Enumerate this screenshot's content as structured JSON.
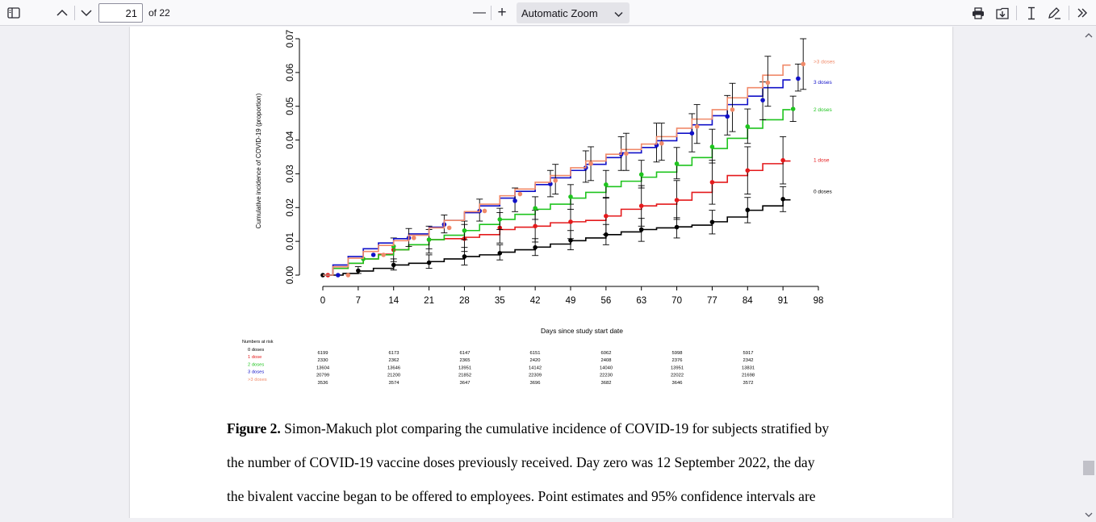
{
  "toolbar": {
    "page_number": "21",
    "page_total": "of 22",
    "zoom_minus": "—",
    "zoom_plus": "+",
    "zoom_label": "Automatic Zoom"
  },
  "colors": {
    "dose0": "#000000",
    "dose1": "#e41a1c",
    "dose2": "#1ec41e",
    "dose3": "#1010c8",
    "dose3plus": "#f08a6a"
  },
  "chart_data": {
    "type": "line",
    "step": true,
    "xlabel": "Days since study start date",
    "ylabel": "Cumulative incidence of COVID-19 (proportion)",
    "xlim": [
      0,
      98
    ],
    "ylim": [
      0,
      0.07
    ],
    "xticks": [
      0,
      7,
      14,
      21,
      28,
      35,
      42,
      49,
      56,
      63,
      70,
      77,
      84,
      91,
      98
    ],
    "yticks": [
      "0.00",
      "0.01",
      "0.02",
      "0.03",
      "0.04",
      "0.05",
      "0.06",
      "0.07"
    ],
    "series": [
      {
        "name": "0 doses",
        "color": "#000000",
        "x": [
          0,
          4,
          7,
          10,
          14,
          17,
          21,
          24,
          28,
          31,
          35,
          38,
          42,
          45,
          49,
          52,
          56,
          59,
          63,
          66,
          70,
          73,
          77,
          80,
          84,
          87,
          91
        ],
        "y": [
          0,
          0.0005,
          0.0012,
          0.002,
          0.003,
          0.0035,
          0.004,
          0.0048,
          0.0055,
          0.006,
          0.0068,
          0.0075,
          0.0083,
          0.0092,
          0.0102,
          0.011,
          0.012,
          0.0128,
          0.0135,
          0.014,
          0.0143,
          0.0148,
          0.0158,
          0.0172,
          0.0192,
          0.0205,
          0.0223
        ],
        "points": [
          [
            0,
            0
          ],
          [
            7,
            0.0013
          ],
          [
            14,
            0.003
          ],
          [
            21,
            0.0037
          ],
          [
            28,
            0.0055
          ],
          [
            35,
            0.0065
          ],
          [
            42,
            0.0082
          ],
          [
            49,
            0.0103
          ],
          [
            56,
            0.012
          ],
          [
            63,
            0.0135
          ],
          [
            70,
            0.0142
          ],
          [
            77,
            0.0157
          ],
          [
            84,
            0.0193
          ],
          [
            91,
            0.0225
          ]
        ],
        "ci": [
          [
            7,
            0.0005,
            0.0025
          ],
          [
            14,
            0.0015,
            0.0048
          ],
          [
            21,
            0.002,
            0.006
          ],
          [
            28,
            0.003,
            0.0082
          ],
          [
            35,
            0.0045,
            0.009
          ],
          [
            42,
            0.0058,
            0.0108
          ],
          [
            49,
            0.0075,
            0.0132
          ],
          [
            56,
            0.009,
            0.015
          ],
          [
            63,
            0.01,
            0.0168
          ],
          [
            70,
            0.011,
            0.017
          ],
          [
            77,
            0.0122,
            0.0192
          ],
          [
            84,
            0.0155,
            0.023
          ],
          [
            91,
            0.0188,
            0.0262
          ]
        ]
      },
      {
        "name": "1 dose",
        "color": "#e41a1c",
        "x": [
          0,
          2,
          5,
          8,
          11,
          14,
          17,
          21,
          24,
          28,
          31,
          35,
          38,
          42,
          45,
          49,
          52,
          56,
          59,
          63,
          66,
          70,
          73,
          77,
          80,
          84,
          87,
          91
        ],
        "y": [
          0,
          0.002,
          0.0035,
          0.0048,
          0.0062,
          0.0075,
          0.009,
          0.0105,
          0.0108,
          0.0112,
          0.012,
          0.0135,
          0.0142,
          0.0145,
          0.0155,
          0.0158,
          0.0162,
          0.0175,
          0.0195,
          0.0205,
          0.021,
          0.0222,
          0.0245,
          0.0275,
          0.0295,
          0.031,
          0.033,
          0.0338
        ],
        "points": [
          [
            1,
            0
          ],
          [
            14,
            0.0075
          ],
          [
            21,
            0.0105
          ],
          [
            28,
            0.0108
          ],
          [
            35,
            0.014
          ],
          [
            42,
            0.0145
          ],
          [
            49,
            0.0158
          ],
          [
            56,
            0.0175
          ],
          [
            63,
            0.0205
          ],
          [
            70,
            0.0222
          ],
          [
            77,
            0.0275
          ],
          [
            84,
            0.031
          ],
          [
            91,
            0.034
          ]
        ],
        "ci": [
          [
            14,
            0.004,
            0.011
          ],
          [
            21,
            0.0065,
            0.0145
          ],
          [
            28,
            0.007,
            0.015
          ],
          [
            35,
            0.0095,
            0.0185
          ],
          [
            42,
            0.0098,
            0.0192
          ],
          [
            49,
            0.0108,
            0.021
          ],
          [
            56,
            0.012,
            0.023
          ],
          [
            63,
            0.0145,
            0.0265
          ],
          [
            70,
            0.0165,
            0.028
          ],
          [
            77,
            0.021,
            0.034
          ],
          [
            84,
            0.024,
            0.038
          ],
          [
            91,
            0.027,
            0.041
          ]
        ]
      },
      {
        "name": "2 doses",
        "color": "#1ec41e",
        "x": [
          0,
          2,
          5,
          8,
          11,
          14,
          17,
          21,
          24,
          28,
          31,
          35,
          38,
          42,
          45,
          49,
          52,
          56,
          59,
          63,
          66,
          70,
          73,
          77,
          80,
          84,
          87,
          91
        ],
        "y": [
          0,
          0.002,
          0.0035,
          0.0048,
          0.006,
          0.0075,
          0.009,
          0.0105,
          0.0118,
          0.0132,
          0.015,
          0.0165,
          0.018,
          0.0195,
          0.021,
          0.0228,
          0.0245,
          0.0262,
          0.0278,
          0.029,
          0.0305,
          0.0325,
          0.0348,
          0.0375,
          0.0405,
          0.0435,
          0.046,
          0.049
        ],
        "points": [
          [
            8,
            0.0048
          ],
          [
            14,
            0.0085
          ],
          [
            21,
            0.0105
          ],
          [
            28,
            0.0132
          ],
          [
            35,
            0.0165
          ],
          [
            42,
            0.0198
          ],
          [
            49,
            0.0232
          ],
          [
            56,
            0.0268
          ],
          [
            63,
            0.0298
          ],
          [
            70,
            0.033
          ],
          [
            77,
            0.038
          ],
          [
            84,
            0.044
          ],
          [
            93,
            0.0492
          ]
        ],
        "ci": [
          [
            21,
            0.0078,
            0.0135
          ],
          [
            28,
            0.0105,
            0.016
          ],
          [
            35,
            0.0135,
            0.0198
          ],
          [
            42,
            0.0165,
            0.0232
          ],
          [
            49,
            0.0195,
            0.0268
          ],
          [
            56,
            0.0228,
            0.031
          ],
          [
            63,
            0.0258,
            0.034
          ],
          [
            70,
            0.0285,
            0.0378
          ],
          [
            77,
            0.0332,
            0.0432
          ],
          [
            84,
            0.039,
            0.0492
          ],
          [
            93,
            0.0455,
            0.053
          ]
        ]
      },
      {
        "name": "3 doses",
        "color": "#1010c8",
        "x": [
          0,
          2,
          5,
          8,
          11,
          14,
          17,
          21,
          24,
          28,
          31,
          35,
          38,
          42,
          45,
          49,
          52,
          56,
          59,
          63,
          66,
          70,
          73,
          77,
          80,
          84,
          87,
          91
        ],
        "y": [
          0,
          0.003,
          0.0055,
          0.0078,
          0.0095,
          0.0108,
          0.0122,
          0.0142,
          0.0162,
          0.0185,
          0.0205,
          0.0228,
          0.0248,
          0.0268,
          0.0288,
          0.031,
          0.0328,
          0.0348,
          0.0362,
          0.0378,
          0.0398,
          0.042,
          0.0445,
          0.0472,
          0.0505,
          0.053,
          0.0555,
          0.0578
        ],
        "points": [
          [
            3,
            0
          ],
          [
            10,
            0.006
          ],
          [
            17,
            0.011
          ],
          [
            24,
            0.015
          ],
          [
            31,
            0.019
          ],
          [
            38,
            0.022
          ],
          [
            45,
            0.027
          ],
          [
            52,
            0.0318
          ],
          [
            59,
            0.0358
          ],
          [
            66,
            0.0385
          ],
          [
            73,
            0.042
          ],
          [
            80,
            0.047
          ],
          [
            87,
            0.0518
          ],
          [
            94,
            0.0582
          ]
        ],
        "ci": [
          [
            17,
            0.0085,
            0.0138
          ],
          [
            24,
            0.0125,
            0.0178
          ],
          [
            31,
            0.016,
            0.0225
          ],
          [
            38,
            0.0188,
            0.0258
          ],
          [
            45,
            0.0232,
            0.031
          ],
          [
            52,
            0.0275,
            0.0368
          ],
          [
            59,
            0.031,
            0.041
          ],
          [
            66,
            0.0335,
            0.045
          ],
          [
            73,
            0.0365,
            0.0478
          ],
          [
            80,
            0.0415,
            0.0532
          ],
          [
            87,
            0.046,
            0.0572
          ],
          [
            94,
            0.0545,
            0.0625
          ]
        ]
      },
      {
        "name": ">3 doses",
        "color": "#f08a6a",
        "x": [
          0,
          2,
          5,
          8,
          11,
          14,
          17,
          21,
          24,
          28,
          31,
          35,
          38,
          42,
          45,
          49,
          52,
          56,
          59,
          63,
          66,
          70,
          73,
          77,
          80,
          84,
          87,
          91
        ],
        "y": [
          0,
          0.0025,
          0.005,
          0.007,
          0.0088,
          0.0102,
          0.0118,
          0.014,
          0.0162,
          0.0188,
          0.021,
          0.0235,
          0.0255,
          0.0275,
          0.0295,
          0.0318,
          0.0338,
          0.0358,
          0.0372,
          0.0388,
          0.041,
          0.0435,
          0.0462,
          0.049,
          0.0525,
          0.0555,
          0.0592,
          0.0622
        ],
        "points": [
          [
            5,
            0
          ],
          [
            12,
            0.006
          ],
          [
            18,
            0.011
          ],
          [
            25,
            0.014
          ],
          [
            32,
            0.019
          ],
          [
            39,
            0.024
          ],
          [
            46,
            0.028
          ],
          [
            53,
            0.033
          ],
          [
            60,
            0.036
          ],
          [
            67,
            0.039
          ],
          [
            74,
            0.044
          ],
          [
            81,
            0.049
          ],
          [
            88,
            0.057
          ],
          [
            95,
            0.0625
          ]
        ],
        "ci": [
          [
            46,
            0.024,
            0.0328
          ],
          [
            53,
            0.028,
            0.038
          ],
          [
            60,
            0.031,
            0.042
          ],
          [
            67,
            0.034,
            0.045
          ],
          [
            74,
            0.039,
            0.0505
          ],
          [
            81,
            0.0425,
            0.0568
          ],
          [
            88,
            0.05,
            0.0648
          ],
          [
            95,
            0.055,
            0.07
          ]
        ]
      }
    ]
  },
  "risk_table": {
    "title": "Numbers at risk",
    "rows": [
      {
        "label": "0 doses",
        "color": "#000000",
        "values": [
          "6199",
          "6173",
          "6147",
          "6151",
          "6062",
          "5998",
          "5917"
        ]
      },
      {
        "label": "1 dose",
        "color": "#e41a1c",
        "values": [
          "2330",
          "2362",
          "2365",
          "2420",
          "2408",
          "2376",
          "2342"
        ]
      },
      {
        "label": "2 doses",
        "color": "#1ec41e",
        "values": [
          "13604",
          "13646",
          "13951",
          "14142",
          "14040",
          "13951",
          "13831"
        ]
      },
      {
        "label": "3 doses",
        "color": "#1010c8",
        "values": [
          "20799",
          "21200",
          "21852",
          "22309",
          "22230",
          "22022",
          "21698"
        ]
      },
      {
        "label": ">3 doses",
        "color": "#f08a6a",
        "values": [
          "3536",
          "3574",
          "3647",
          "3696",
          "3682",
          "3646",
          "3572"
        ]
      }
    ]
  },
  "caption": {
    "label": "Figure 2.",
    "line1": " Simon-Makuch plot comparing the cumulative incidence of COVID-19 for subjects stratified by",
    "line2": "the number of COVID-19 vaccine doses previously received. Day zero was 12 September 2022, the day",
    "line3": "the bivalent vaccine began to be offered to employees. Point estimates and 95% confidence intervals are"
  }
}
